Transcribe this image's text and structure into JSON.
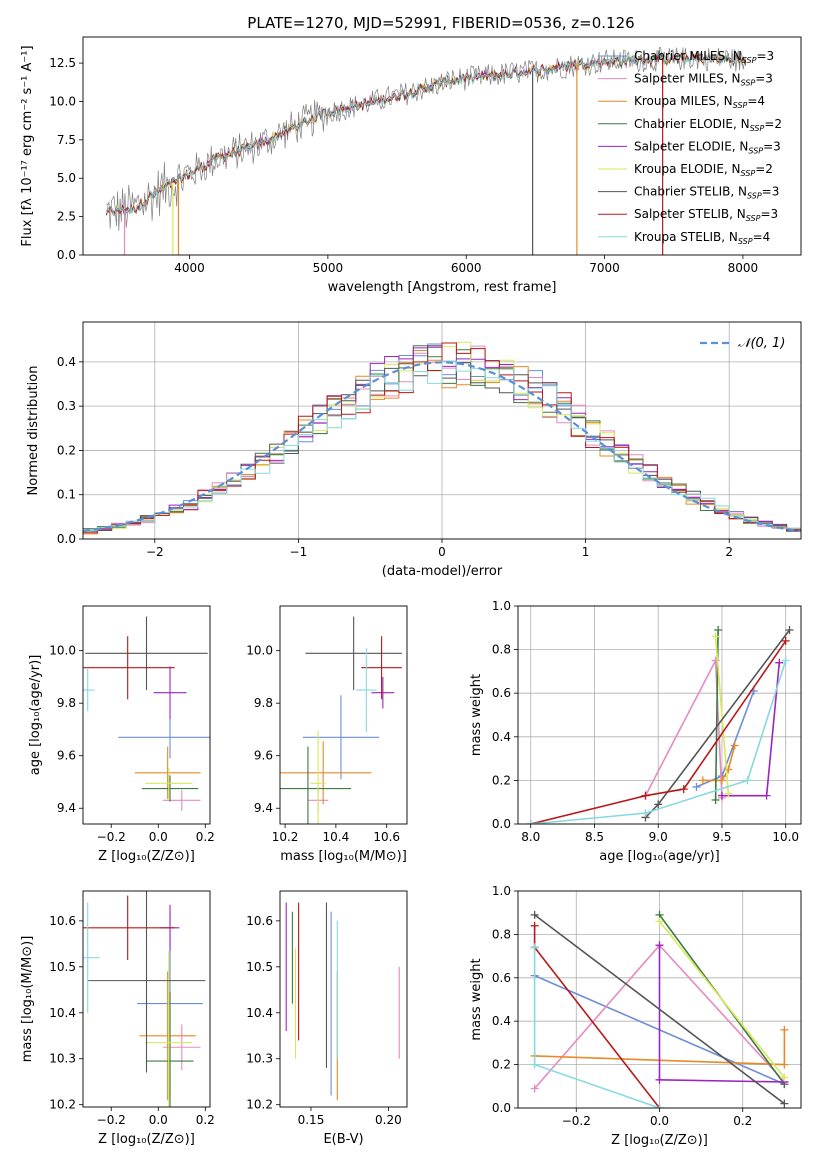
{
  "figure_title": "PLATE=1270, MJD=52991, FIBERID=0536, z=0.126",
  "colors": {
    "Chabrier MILES": "#6b8fd6",
    "Salpeter MILES": "#e68ac2",
    "Kroupa MILES": "#e8892a",
    "Chabrier ELODIE": "#3f7a44",
    "Salpeter ELODIE": "#9a25c0",
    "Kroupa ELODIE": "#d8e85a",
    "Chabrier STELIB": "#555555",
    "Salpeter STELIB": "#b81818",
    "Kroupa STELIB": "#86d9df",
    "data": "#808080",
    "normal": "#5b8fd6"
  },
  "chart_data": [
    {
      "id": "spectrum",
      "type": "line",
      "xlabel": "wavelength [Angstrom, rest frame]",
      "ylabel": "Flux [fλ 10⁻¹⁷ erg cm⁻² s⁻¹ A⁻¹]",
      "xlim": [
        3230,
        8420
      ],
      "ylim": [
        0,
        14.2
      ],
      "xticks": [
        4000,
        5000,
        6000,
        7000,
        8000
      ],
      "yticks": [
        0.0,
        2.5,
        5.0,
        7.5,
        10.0,
        12.5
      ],
      "grid": false,
      "legend_position": "top-right",
      "legend": [
        {
          "name": "Chabrier MILES",
          "n_ssp": 3
        },
        {
          "name": "Salpeter MILES",
          "n_ssp": 3
        },
        {
          "name": "Kroupa MILES",
          "n_ssp": 4
        },
        {
          "name": "Chabrier ELODIE",
          "n_ssp": 2
        },
        {
          "name": "Salpeter ELODIE",
          "n_ssp": 3
        },
        {
          "name": "Kroupa ELODIE",
          "n_ssp": 2
        },
        {
          "name": "Chabrier STELIB",
          "n_ssp": 3
        },
        {
          "name": "Salpeter STELIB",
          "n_ssp": 3
        },
        {
          "name": "Kroupa STELIB",
          "n_ssp": 4
        }
      ],
      "continuum": [
        [
          3400,
          2.8
        ],
        [
          3600,
          3.0
        ],
        [
          3800,
          4.3
        ],
        [
          4000,
          5.3
        ],
        [
          4200,
          6.3
        ],
        [
          4500,
          7.2
        ],
        [
          4800,
          8.5
        ],
        [
          5000,
          9.3
        ],
        [
          5300,
          9.9
        ],
        [
          5600,
          10.6
        ],
        [
          5900,
          11.4
        ],
        [
          6200,
          11.7
        ],
        [
          6500,
          12.0
        ],
        [
          6800,
          12.4
        ],
        [
          7000,
          12.6
        ],
        [
          7300,
          12.7
        ],
        [
          7600,
          12.8
        ],
        [
          7900,
          12.8
        ],
        [
          8000,
          12.6
        ]
      ]
    },
    {
      "id": "residuals",
      "type": "histogram",
      "xlabel": "(data-model)/error",
      "ylabel": "Normed distribution",
      "xlim": [
        -2.5,
        2.5
      ],
      "ylim": [
        0,
        0.49
      ],
      "xticks": [
        -2,
        -1,
        0,
        1,
        2
      ],
      "yticks": [
        0.0,
        0.1,
        0.2,
        0.3,
        0.4
      ],
      "grid": true,
      "legend_position": "top-right",
      "normal_label": "𝒩(0, 1)",
      "bin_width": 0.1
    },
    {
      "id": "age-vs-Z",
      "type": "scatter",
      "xlabel": "Z [log₁₀(Z/Z⊙)]",
      "ylabel": "age [log₁₀(age/yr)]",
      "xlim": [
        -0.32,
        0.22
      ],
      "ylim": [
        9.34,
        10.17
      ],
      "xticks": [
        -0.2,
        0.0,
        0.2
      ],
      "xtick_labels": [
        "−0.2",
        "0.0",
        "0.2"
      ],
      "yticks": [
        9.4,
        9.6,
        9.8,
        10.0
      ],
      "grid": false,
      "points": [
        {
          "model": "Chabrier MILES",
          "x": 0.05,
          "xerr": 0.22,
          "y": 9.67,
          "yerr": 0.08
        },
        {
          "model": "Salpeter MILES",
          "x": 0.1,
          "xerr": 0.08,
          "y": 9.43,
          "yerr": 0.04
        },
        {
          "model": "Kroupa MILES",
          "x": 0.04,
          "xerr": 0.14,
          "y": 9.535,
          "yerr": 0.1
        },
        {
          "model": "Chabrier ELODIE",
          "x": 0.05,
          "xerr": 0.12,
          "y": 9.475,
          "yerr": 0.05
        },
        {
          "model": "Salpeter ELODIE",
          "x": 0.05,
          "xerr": 0.07,
          "y": 9.84,
          "yerr": 0.1
        },
        {
          "model": "Kroupa ELODIE",
          "x": 0.045,
          "xerr": 0.1,
          "y": 9.495,
          "yerr": 0.06
        },
        {
          "model": "Chabrier STELIB",
          "x": -0.05,
          "xerr": 0.26,
          "y": 9.99,
          "yerr": 0.14
        },
        {
          "model": "Salpeter STELIB",
          "x": -0.13,
          "xerr": 0.2,
          "y": 9.935,
          "yerr": 0.12
        },
        {
          "model": "Kroupa STELIB",
          "x": -0.3,
          "xerr": 0.03,
          "y": 9.85,
          "yerr": 0.08
        }
      ]
    },
    {
      "id": "age-vs-mass",
      "type": "scatter",
      "xlabel": "mass [log₁₀(M/M⊙)]",
      "ylabel": "",
      "xlim": [
        10.18,
        10.68
      ],
      "ylim": [
        9.34,
        10.17
      ],
      "xticks": [
        10.2,
        10.4,
        10.6
      ],
      "yticks": [
        9.4,
        9.6,
        9.8,
        10.0
      ],
      "grid": false,
      "points": [
        {
          "model": "Chabrier MILES",
          "x": 10.42,
          "xerr": 0.15,
          "y": 9.67,
          "yerr": 0.16
        },
        {
          "model": "Salpeter MILES",
          "x": 10.33,
          "xerr": 0.04,
          "y": 9.43,
          "yerr": 0.05
        },
        {
          "model": "Kroupa MILES",
          "x": 10.35,
          "xerr": 0.19,
          "y": 9.535,
          "yerr": 0.12
        },
        {
          "model": "Chabrier ELODIE",
          "x": 10.29,
          "xerr": 0.17,
          "y": 9.475,
          "yerr": 0.16
        },
        {
          "model": "Salpeter ELODIE",
          "x": 10.585,
          "xerr": 0.045,
          "y": 9.84,
          "yerr": 0.06
        },
        {
          "model": "Kroupa ELODIE",
          "x": 10.33,
          "xerr": 0.03,
          "y": 9.495,
          "yerr": 0.2
        },
        {
          "model": "Chabrier STELIB",
          "x": 10.47,
          "xerr": 0.19,
          "y": 9.99,
          "yerr": 0.14
        },
        {
          "model": "Salpeter STELIB",
          "x": 10.58,
          "xerr": 0.08,
          "y": 9.935,
          "yerr": 0.12
        },
        {
          "model": "Kroupa STELIB",
          "x": 10.52,
          "xerr": 0.04,
          "y": 9.85,
          "yerr": 0.16
        }
      ]
    },
    {
      "id": "mass-weight-vs-age",
      "type": "line",
      "xlabel": "age [log₁₀(age/yr)]",
      "ylabel": "mass weight",
      "xlim": [
        7.9,
        10.12
      ],
      "ylim": [
        0,
        1.0
      ],
      "xticks": [
        8.0,
        8.5,
        9.0,
        9.5,
        10.0
      ],
      "yticks": [
        0.0,
        0.2,
        0.4,
        0.6,
        0.8,
        1.0
      ],
      "grid": true,
      "series": [
        {
          "model": "Chabrier MILES",
          "x": [
            9.3,
            9.5,
            9.75
          ],
          "y": [
            0.17,
            0.22,
            0.61
          ]
        },
        {
          "model": "Salpeter MILES",
          "x": [
            8.9,
            9.45,
            9.5
          ],
          "y": [
            0.13,
            0.75,
            0.12
          ]
        },
        {
          "model": "Kroupa MILES",
          "x": [
            9.35,
            9.5,
            9.55,
            9.6
          ],
          "y": [
            0.2,
            0.2,
            0.25,
            0.36
          ]
        },
        {
          "model": "Chabrier ELODIE",
          "x": [
            9.45,
            9.47
          ],
          "y": [
            0.11,
            0.89
          ]
        },
        {
          "model": "Salpeter ELODIE",
          "x": [
            9.5,
            9.85,
            9.95
          ],
          "y": [
            0.13,
            0.13,
            0.74
          ]
        },
        {
          "model": "Kroupa ELODIE",
          "x": [
            9.45,
            9.55
          ],
          "y": [
            0.86,
            0.14
          ]
        },
        {
          "model": "Chabrier STELIB",
          "x": [
            8.9,
            9.0,
            10.03
          ],
          "y": [
            0.03,
            0.09,
            0.89
          ]
        },
        {
          "model": "Salpeter STELIB",
          "x": [
            8.0,
            8.9,
            9.2,
            10.0
          ],
          "y": [
            0.0,
            0.13,
            0.16,
            0.84
          ]
        },
        {
          "model": "Kroupa STELIB",
          "x": [
            8.0,
            8.9,
            9.7,
            10.0
          ],
          "y": [
            0.0,
            0.05,
            0.2,
            0.75
          ]
        }
      ]
    },
    {
      "id": "mass-vs-Z",
      "type": "scatter",
      "xlabel": "Z [log₁₀(Z/Z⊙)]",
      "ylabel": "mass [log₁₀(M/M⊙)]",
      "xlim": [
        -0.32,
        0.22
      ],
      "ylim": [
        10.195,
        10.665
      ],
      "xticks": [
        -0.2,
        0.0,
        0.2
      ],
      "xtick_labels": [
        "−0.2",
        "0.0",
        "0.2"
      ],
      "yticks": [
        10.2,
        10.3,
        10.4,
        10.5,
        10.6
      ],
      "grid": false,
      "points": [
        {
          "model": "Chabrier MILES",
          "x": 0.05,
          "xerr": 0.14,
          "y": 10.42,
          "yerr": 0.2
        },
        {
          "model": "Salpeter MILES",
          "x": 0.1,
          "xerr": 0.08,
          "y": 10.325,
          "yerr": 0.05
        },
        {
          "model": "Kroupa MILES",
          "x": 0.04,
          "xerr": 0.12,
          "y": 10.35,
          "yerr": 0.14
        },
        {
          "model": "Chabrier ELODIE",
          "x": 0.05,
          "xerr": 0.1,
          "y": 10.295,
          "yerr": 0.15
        },
        {
          "model": "Salpeter ELODIE",
          "x": 0.05,
          "xerr": 0.04,
          "y": 10.585,
          "yerr": 0.05
        },
        {
          "model": "Kroupa ELODIE",
          "x": 0.045,
          "xerr": 0.1,
          "y": 10.335,
          "yerr": 0.2
        },
        {
          "model": "Chabrier STELIB",
          "x": -0.05,
          "xerr": 0.25,
          "y": 10.47,
          "yerr": 0.2
        },
        {
          "model": "Salpeter STELIB",
          "x": -0.13,
          "xerr": 0.2,
          "y": 10.585,
          "yerr": 0.07
        },
        {
          "model": "Kroupa STELIB",
          "x": -0.3,
          "xerr": 0.05,
          "y": 10.52,
          "yerr": 0.12
        }
      ]
    },
    {
      "id": "mass-vs-EBV",
      "type": "scatter",
      "xlabel": "E(B-V)",
      "ylabel": "",
      "xlim": [
        0.13,
        0.212
      ],
      "ylim": [
        10.195,
        10.665
      ],
      "xticks": [
        0.15,
        0.2
      ],
      "yticks": [
        10.2,
        10.3,
        10.4,
        10.5,
        10.6
      ],
      "grid": false,
      "points": [
        {
          "model": "Chabrier MILES",
          "x": 0.163,
          "y": 10.42,
          "yerr": 0.2
        },
        {
          "model": "Salpeter MILES",
          "x": 0.207,
          "y": 10.4,
          "yerr": 0.1
        },
        {
          "model": "Kroupa MILES",
          "x": 0.167,
          "y": 10.35,
          "yerr": 0.14
        },
        {
          "model": "Chabrier ELODIE",
          "x": 0.138,
          "y": 10.52,
          "yerr": 0.1
        },
        {
          "model": "Salpeter ELODIE",
          "x": 0.134,
          "y": 10.5,
          "yerr": 0.14
        },
        {
          "model": "Kroupa ELODIE",
          "x": 0.14,
          "y": 10.42,
          "yerr": 0.12
        },
        {
          "model": "Chabrier STELIB",
          "x": 0.16,
          "y": 10.46,
          "yerr": 0.18
        },
        {
          "model": "Salpeter STELIB",
          "x": 0.142,
          "y": 10.49,
          "yerr": 0.15
        },
        {
          "model": "Kroupa STELIB",
          "x": 0.167,
          "y": 10.45,
          "yerr": 0.15
        }
      ]
    },
    {
      "id": "mass-weight-vs-Z",
      "type": "line",
      "xlabel": "Z [log₁₀(Z/Z⊙)]",
      "ylabel": "mass weight",
      "xlim": [
        -0.34,
        0.34
      ],
      "ylim": [
        0,
        1.0
      ],
      "xticks": [
        -0.2,
        0.0,
        0.2
      ],
      "xtick_labels": [
        "−0.2",
        "0.0",
        "0.2"
      ],
      "yticks": [
        0.0,
        0.2,
        0.4,
        0.6,
        0.8,
        1.0
      ],
      "grid": true,
      "series": [
        {
          "model": "Chabrier MILES",
          "x": [
            -0.3,
            0.3
          ],
          "y": [
            0.61,
            0.11
          ]
        },
        {
          "model": "Salpeter MILES",
          "x": [
            -0.3,
            0.0,
            0.3
          ],
          "y": [
            0.09,
            0.75,
            0.12
          ]
        },
        {
          "model": "Kroupa MILES",
          "x": [
            -0.3,
            0.3,
            0.3
          ],
          "y": [
            0.24,
            0.2,
            0.36
          ]
        },
        {
          "model": "Chabrier ELODIE",
          "x": [
            0.0,
            0.3
          ],
          "y": [
            0.89,
            0.11
          ]
        },
        {
          "model": "Salpeter ELODIE",
          "x": [
            0.0,
            0.0,
            0.3
          ],
          "y": [
            0.75,
            0.13,
            0.12
          ]
        },
        {
          "model": "Kroupa ELODIE",
          "x": [
            0.0,
            0.3
          ],
          "y": [
            0.86,
            0.14
          ]
        },
        {
          "model": "Chabrier STELIB",
          "x": [
            -0.3,
            0.3
          ],
          "y": [
            0.89,
            0.02
          ]
        },
        {
          "model": "Salpeter STELIB",
          "x": [
            -0.3,
            -0.3,
            0.0
          ],
          "y": [
            0.84,
            0.74,
            0.0
          ]
        },
        {
          "model": "Kroupa STELIB",
          "x": [
            -0.3,
            -0.3,
            0.0
          ],
          "y": [
            0.74,
            0.2,
            0.0
          ]
        }
      ]
    }
  ]
}
